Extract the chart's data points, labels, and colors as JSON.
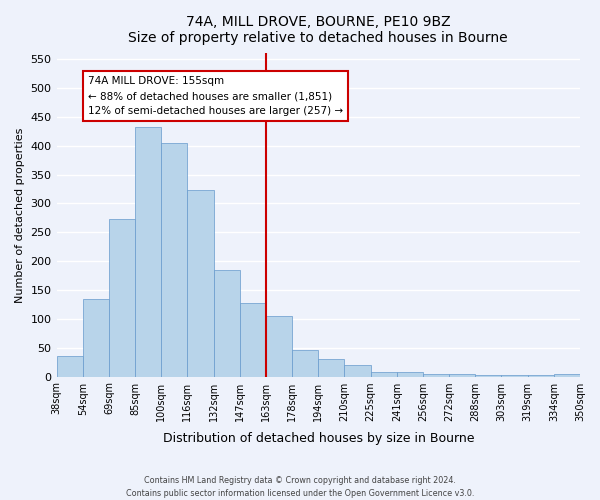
{
  "title": "74A, MILL DROVE, BOURNE, PE10 9BZ",
  "subtitle": "Size of property relative to detached houses in Bourne",
  "xlabel": "Distribution of detached houses by size in Bourne",
  "ylabel": "Number of detached properties",
  "bar_labels": [
    "38sqm",
    "54sqm",
    "69sqm",
    "85sqm",
    "100sqm",
    "116sqm",
    "132sqm",
    "147sqm",
    "163sqm",
    "178sqm",
    "194sqm",
    "210sqm",
    "225sqm",
    "241sqm",
    "256sqm",
    "272sqm",
    "288sqm",
    "303sqm",
    "319sqm",
    "334sqm",
    "350sqm"
  ],
  "bar_values": [
    35,
    134,
    273,
    433,
    405,
    323,
    184,
    128,
    105,
    46,
    30,
    20,
    8,
    8,
    5,
    4,
    2,
    2,
    2,
    5
  ],
  "bar_color": "#b8d4ea",
  "bar_edge_color": "#6699cc",
  "vline_position": 8.0,
  "vline_color": "#cc0000",
  "annotation_text": "74A MILL DROVE: 155sqm\n← 88% of detached houses are smaller (1,851)\n12% of semi-detached houses are larger (257) →",
  "annotation_box_color": "#ffffff",
  "annotation_box_edge": "#cc0000",
  "ylim": [
    0,
    560
  ],
  "yticks": [
    0,
    50,
    100,
    150,
    200,
    250,
    300,
    350,
    400,
    450,
    500,
    550
  ],
  "footer_line1": "Contains HM Land Registry data © Crown copyright and database right 2024.",
  "footer_line2": "Contains public sector information licensed under the Open Government Licence v3.0.",
  "bg_color": "#eef2fb",
  "grid_color": "#ffffff"
}
